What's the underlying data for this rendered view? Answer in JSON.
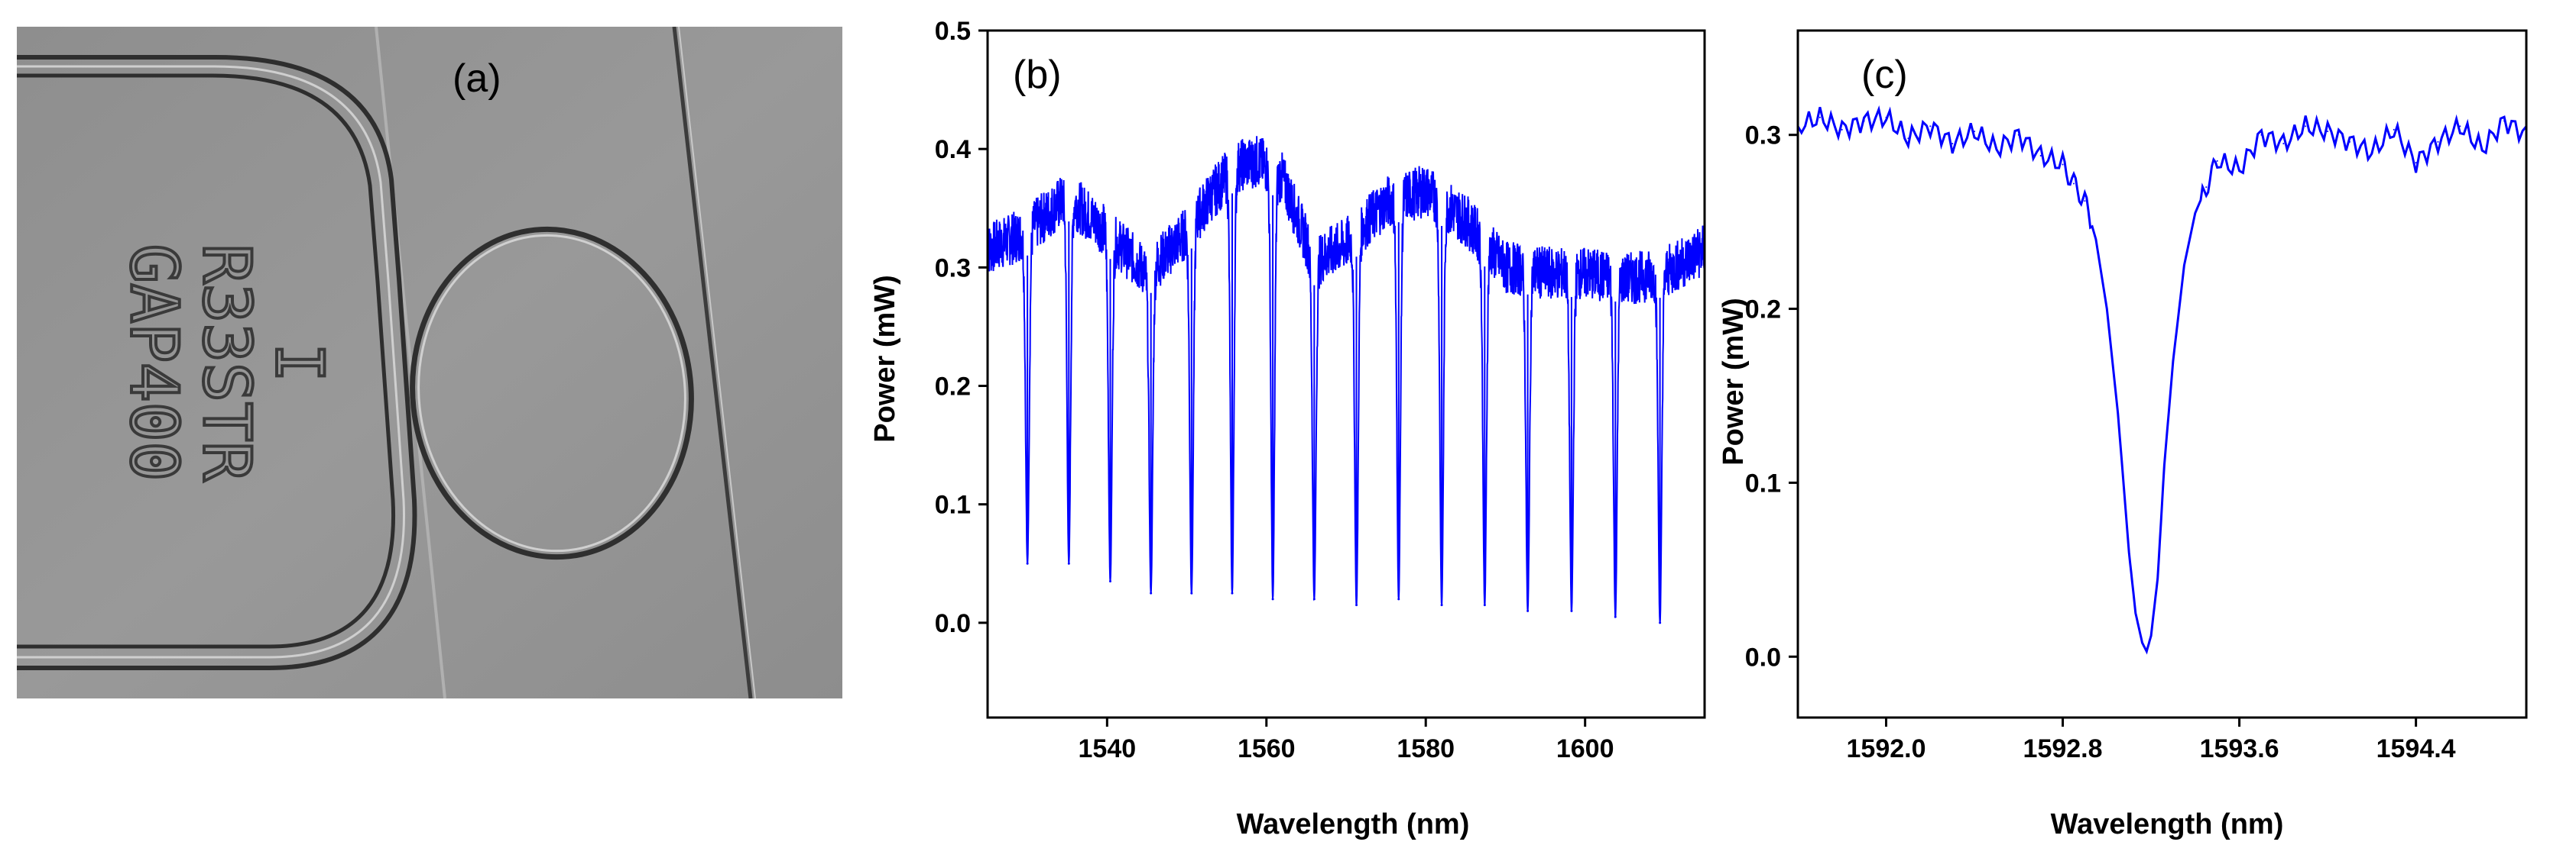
{
  "panel_a": {
    "label": "(a)",
    "engraved_text": [
      "I",
      "R33STR",
      "GAP400"
    ]
  },
  "chart_data": [
    {
      "type": "line",
      "panel_label": "(b)",
      "xlabel": "Wavelength (nm)",
      "ylabel": "Power (mW)",
      "xlim": [
        1525,
        1615
      ],
      "ylim": [
        -0.08,
        0.5
      ],
      "xticks": [
        1540,
        1560,
        1580,
        1600
      ],
      "yticks": [
        0.0,
        0.1,
        0.2,
        0.3,
        0.4,
        0.5
      ],
      "color": "#0000ff",
      "envelope": {
        "x": [
          1525,
          1530,
          1535,
          1540,
          1545,
          1550,
          1553,
          1556,
          1559,
          1562,
          1566,
          1570,
          1575,
          1580,
          1585,
          1590,
          1595,
          1600,
          1605,
          1610,
          1615
        ],
        "y": [
          0.315,
          0.33,
          0.36,
          0.33,
          0.295,
          0.33,
          0.36,
          0.385,
          0.39,
          0.375,
          0.305,
          0.32,
          0.355,
          0.365,
          0.34,
          0.3,
          0.295,
          0.295,
          0.29,
          0.295,
          0.315
        ]
      },
      "dips": [
        {
          "x": 1530.0,
          "y": 0.05
        },
        {
          "x": 1535.2,
          "y": 0.05
        },
        {
          "x": 1540.4,
          "y": 0.035
        },
        {
          "x": 1545.5,
          "y": 0.025
        },
        {
          "x": 1550.6,
          "y": 0.025
        },
        {
          "x": 1555.7,
          "y": 0.025
        },
        {
          "x": 1560.8,
          "y": 0.02
        },
        {
          "x": 1566.0,
          "y": 0.02
        },
        {
          "x": 1571.3,
          "y": 0.015
        },
        {
          "x": 1576.6,
          "y": 0.02
        },
        {
          "x": 1582.0,
          "y": 0.015
        },
        {
          "x": 1587.4,
          "y": 0.015
        },
        {
          "x": 1592.8,
          "y": 0.01
        },
        {
          "x": 1598.3,
          "y": 0.01
        },
        {
          "x": 1603.8,
          "y": 0.005
        },
        {
          "x": 1609.4,
          "y": 0.0
        }
      ]
    },
    {
      "type": "line",
      "panel_label": "(c)",
      "xlabel": "Wavelength (nm)",
      "ylabel": "Power (mW)",
      "xlim": [
        1591.6,
        1594.9
      ],
      "ylim": [
        -0.035,
        0.36
      ],
      "xticks": [
        "1592.0",
        "1592.8",
        "1593.6",
        "1594.4"
      ],
      "yticks": [
        "0.0",
        "0.1",
        "0.2",
        "0.3"
      ],
      "color": "#0000ff",
      "dip": {
        "center": 1593.18,
        "min": 0.003,
        "baseline": 0.3
      },
      "x": [
        1591.6,
        1591.7,
        1591.8,
        1591.9,
        1592.0,
        1592.1,
        1592.2,
        1592.3,
        1592.4,
        1592.5,
        1592.6,
        1592.7,
        1592.8,
        1592.85,
        1592.9,
        1592.95,
        1593.0,
        1593.05,
        1593.1,
        1593.13,
        1593.16,
        1593.18,
        1593.2,
        1593.23,
        1593.26,
        1593.3,
        1593.35,
        1593.4,
        1593.45,
        1593.5,
        1593.6,
        1593.7,
        1593.8,
        1593.9,
        1594.0,
        1594.1,
        1594.2,
        1594.3,
        1594.4,
        1594.5,
        1594.6,
        1594.7,
        1594.8,
        1594.9
      ],
      "y": [
        0.305,
        0.31,
        0.303,
        0.308,
        0.31,
        0.298,
        0.305,
        0.295,
        0.302,
        0.292,
        0.3,
        0.288,
        0.283,
        0.272,
        0.262,
        0.24,
        0.2,
        0.14,
        0.06,
        0.025,
        0.008,
        0.003,
        0.012,
        0.045,
        0.11,
        0.17,
        0.225,
        0.255,
        0.27,
        0.285,
        0.28,
        0.3,
        0.295,
        0.305,
        0.302,
        0.296,
        0.29,
        0.303,
        0.284,
        0.296,
        0.305,
        0.292,
        0.308,
        0.3
      ]
    }
  ]
}
